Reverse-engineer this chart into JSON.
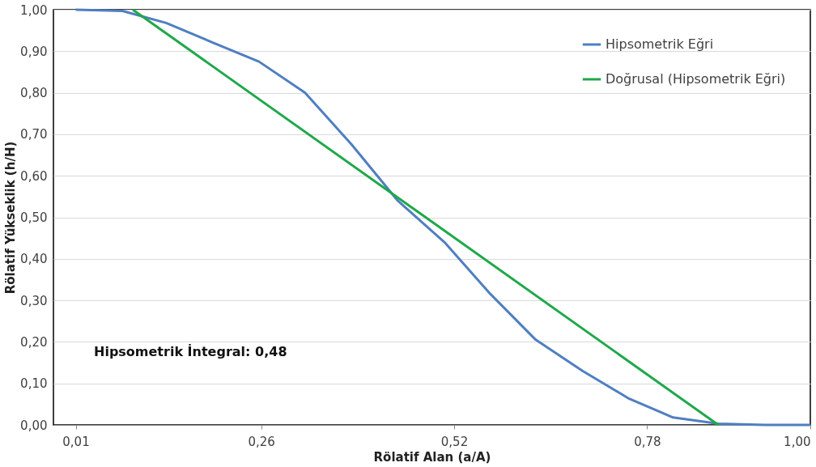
{
  "chart_data": {
    "type": "line",
    "xlabel": "Rölatif Alan (a/A)",
    "ylabel": "Rölatif Yükseklik (h/H)",
    "xlim": [
      -0.02,
      1.0
    ],
    "ylim": [
      0,
      1
    ],
    "xticks": [
      {
        "value": 0.01,
        "label": "0,01"
      },
      {
        "value": 0.26,
        "label": "0,26"
      },
      {
        "value": 0.52,
        "label": "0,52"
      },
      {
        "value": 0.78,
        "label": "0,78"
      },
      {
        "value": 1.0,
        "label": "1,00"
      }
    ],
    "yticks": [
      {
        "value": 0,
        "label": "0,00"
      },
      {
        "value": 0.1,
        "label": "0,10"
      },
      {
        "value": 0.2,
        "label": "0,20"
      },
      {
        "value": 0.3,
        "label": "0,30"
      },
      {
        "value": 0.4,
        "label": "0,40"
      },
      {
        "value": 0.5,
        "label": "0,50"
      },
      {
        "value": 0.6,
        "label": "0,60"
      },
      {
        "value": 0.7,
        "label": "0,70"
      },
      {
        "value": 0.8,
        "label": "0,80"
      },
      {
        "value": 0.9,
        "label": "0,90"
      },
      {
        "value": 1.0,
        "label": "1,00"
      }
    ],
    "grid": "y",
    "legend": "top right",
    "marker": "none",
    "line_style": "solid",
    "annotations": [
      "Hipsometrik İntegral: 0,48"
    ],
    "series": [
      {
        "name": "Hipsometrik Eğri",
        "color": "#4f7fc0",
        "x": [
          0.01,
          0.073,
          0.132,
          0.196,
          0.257,
          0.319,
          0.382,
          0.444,
          0.507,
          0.569,
          0.63,
          0.693,
          0.756,
          0.815,
          0.876,
          0.939,
          1.0
        ],
        "values": [
          1.0,
          0.997,
          0.968,
          0.92,
          0.875,
          0.8,
          0.675,
          0.54,
          0.44,
          0.315,
          0.205,
          0.13,
          0.063,
          0.018,
          0.003,
          0.0,
          0.0
        ]
      },
      {
        "name": "Doğrusal (Hipsometrik Eğri)",
        "color": "#1fa84a",
        "x": [
          0.087,
          0.876
        ],
        "values": [
          1.0,
          0.0
        ]
      }
    ]
  }
}
